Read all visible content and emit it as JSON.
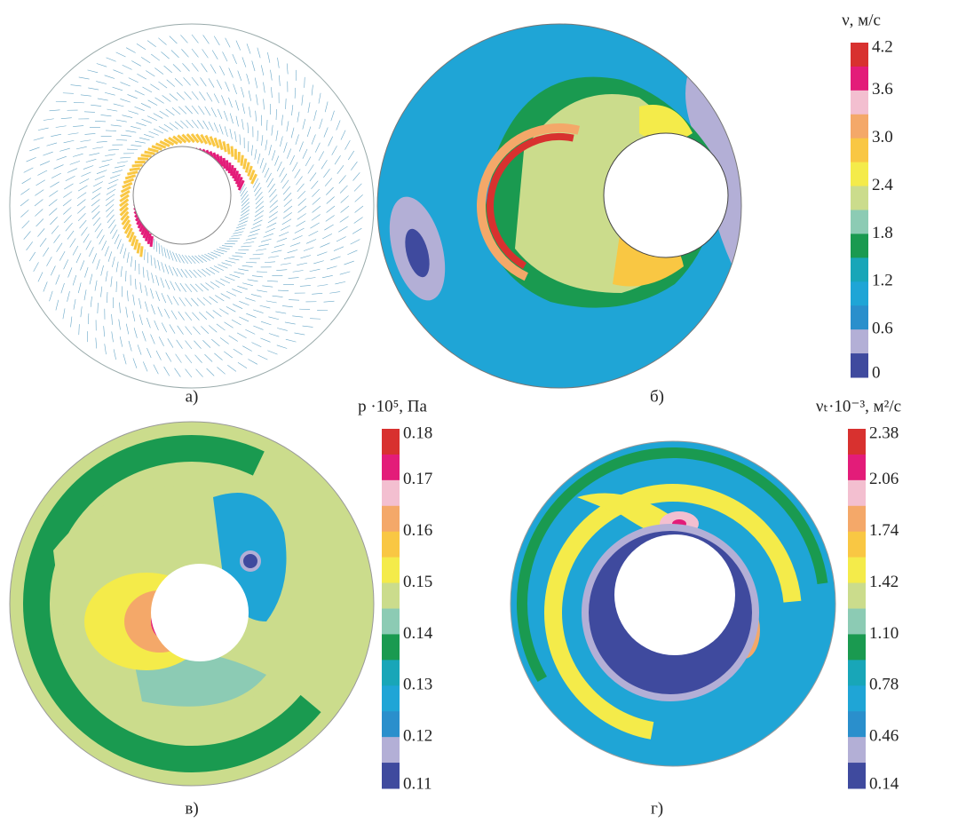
{
  "panels": [
    {
      "caption": "а)"
    },
    {
      "caption": "б)",
      "colorbar": {
        "title": "ν, м/с",
        "labels": [
          "4.2",
          "3.6",
          "3.0",
          "2.4",
          "1.8",
          "1.2",
          "0.6",
          "0"
        ]
      }
    },
    {
      "caption": "в)",
      "colorbar": {
        "title": "p ·10⁵, Па",
        "labels": [
          "0.18",
          "0.17",
          "0.16",
          "0.15",
          "0.14",
          "0.13",
          "0.12",
          "0.11"
        ]
      }
    },
    {
      "caption": "г)",
      "colorbar": {
        "title": "νₜ·10⁻³, м²/с",
        "labels": [
          "2.38",
          "2.06",
          "1.74",
          "1.42",
          "1.10",
          "0.78",
          "0.46",
          "0.14"
        ]
      }
    }
  ],
  "colors": [
    "#d8312f",
    "#e31c79",
    "#f3bfd0",
    "#f4a869",
    "#f9c743",
    "#f4eb4a",
    "#cbdc8c",
    "#8ccbb4",
    "#1a9a50",
    "#18a6b8",
    "#1fa5d6",
    "#2a8fcc",
    "#b3afd6",
    "#3f4a9e"
  ]
}
